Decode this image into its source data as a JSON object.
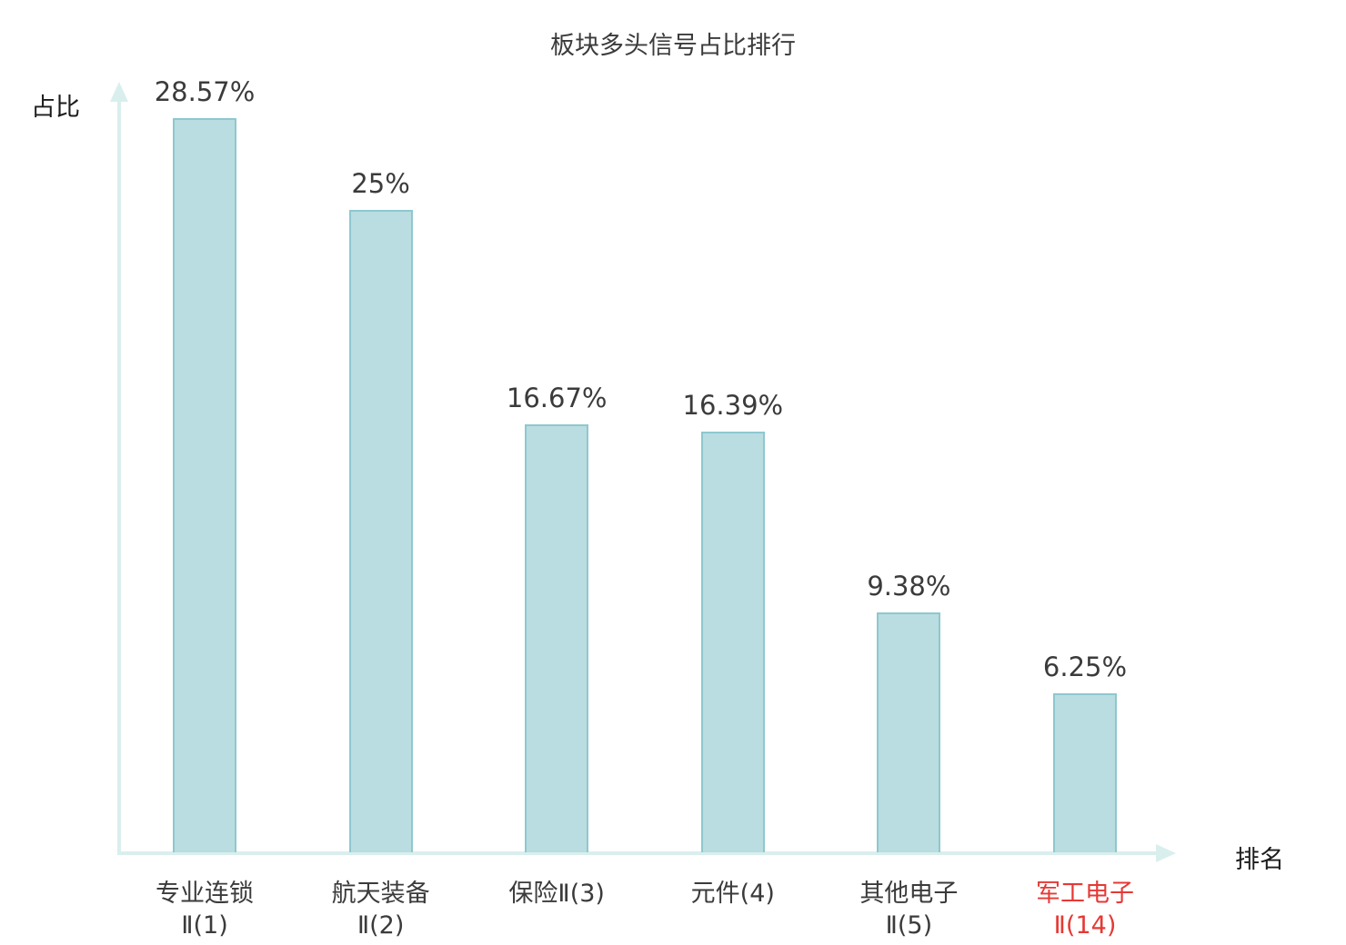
{
  "chart_data": {
    "type": "bar",
    "title": "板块多头信号占比排行",
    "ylabel": "占比",
    "xlabel": "排名",
    "categories": [
      "专业连锁Ⅱ(1)",
      "航天装备Ⅱ(2)",
      "保险Ⅱ(3)",
      "元件(4)",
      "其他电子Ⅱ(5)",
      "军工电子Ⅱ(14)"
    ],
    "category_lines": [
      [
        "专业连锁",
        "Ⅱ(1)"
      ],
      [
        "航天装备",
        "Ⅱ(2)"
      ],
      [
        "保险Ⅱ(3)"
      ],
      [
        "元件(4)"
      ],
      [
        "其他电子",
        "Ⅱ(5)"
      ],
      [
        "军工电子",
        "Ⅱ(14)"
      ]
    ],
    "values": [
      28.57,
      25,
      16.67,
      16.39,
      9.38,
      6.25
    ],
    "value_labels": [
      "28.57%",
      "25%",
      "16.67%",
      "16.39%",
      "9.38%",
      "6.25%"
    ],
    "highlighted_index": 5,
    "ylim": [
      0,
      30
    ],
    "grid": false,
    "legend": "none",
    "colors": {
      "bar_fill": "#b9dde1",
      "bar_border": "#8ec8cf",
      "axis": "#d9efee",
      "text": "#3b3b3b",
      "highlight": "#e53935"
    }
  }
}
